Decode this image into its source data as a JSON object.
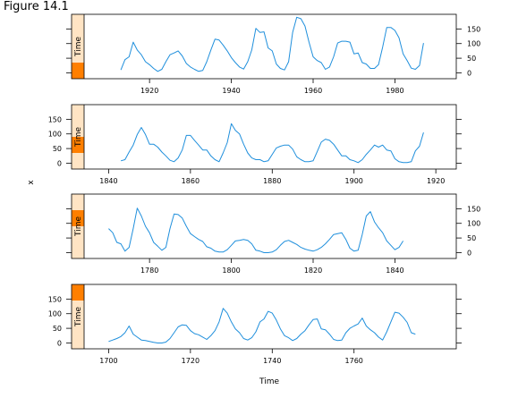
{
  "figure_label": "Figure 14.1",
  "chart_data": {
    "type": "line",
    "title": "",
    "xlabel": "Time",
    "ylabel": "x",
    "strip_label": "Time",
    "line_color": "#1f8fdc",
    "strip_color": "#ffe4c4",
    "strip_marker_color": "#ff7f00",
    "grid": false,
    "panels": [
      {
        "name": "panel-4",
        "xlim": [
          1904,
          1995
        ],
        "ylim": [
          -20,
          200
        ],
        "xticks": [
          1920,
          1940,
          1960,
          1980
        ],
        "yticks": [
          0,
          50,
          100,
          150
        ],
        "yaxis_side": "right",
        "xaxis_side": "bottom",
        "strip_fraction": [
          0.0,
          0.25
        ],
        "x_start": 1913,
        "values": [
          10,
          45,
          55,
          105,
          78,
          62,
          38,
          28,
          15,
          5,
          12,
          38,
          62,
          68,
          75,
          58,
          32,
          20,
          12,
          5,
          8,
          38,
          78,
          115,
          112,
          95,
          75,
          52,
          35,
          20,
          13,
          38,
          78,
          152,
          138,
          140,
          85,
          75,
          30,
          15,
          10,
          38,
          138,
          190,
          185,
          160,
          105,
          55,
          42,
          35,
          12,
          20,
          55,
          102,
          108,
          108,
          105,
          65,
          68,
          35,
          30,
          15,
          15,
          28,
          88,
          155,
          155,
          145,
          120,
          65,
          42,
          16,
          12,
          25,
          102
        ]
      },
      {
        "name": "panel-3",
        "xlim": [
          1834,
          1925
        ],
        "ylim": [
          -20,
          200
        ],
        "xticks": [
          1840,
          1860,
          1880,
          1900,
          1920
        ],
        "yticks": [
          0,
          50,
          100,
          150
        ],
        "yaxis_side": "left",
        "xaxis_side": "bottom",
        "strip_fraction": [
          0.25,
          0.5
        ],
        "x_start": 1843,
        "values": [
          8,
          12,
          38,
          62,
          98,
          122,
          98,
          65,
          65,
          55,
          38,
          25,
          10,
          5,
          18,
          45,
          95,
          95,
          78,
          62,
          45,
          45,
          25,
          12,
          5,
          35,
          70,
          135,
          112,
          100,
          65,
          35,
          18,
          12,
          12,
          5,
          8,
          30,
          52,
          58,
          62,
          62,
          48,
          22,
          12,
          5,
          5,
          8,
          40,
          72,
          82,
          78,
          65,
          45,
          25,
          25,
          12,
          8,
          2,
          12,
          30,
          45,
          62,
          55,
          62,
          45,
          42,
          15,
          5,
          2,
          2,
          5,
          42,
          58,
          105
        ]
      },
      {
        "name": "panel-2",
        "xlim": [
          1764,
          1855
        ],
        "ylim": [
          -20,
          200
        ],
        "xticks": [
          1780,
          1800,
          1820,
          1840
        ],
        "yticks": [
          0,
          50,
          100,
          150
        ],
        "yaxis_side": "right",
        "xaxis_side": "bottom",
        "strip_fraction": [
          0.5,
          0.75
        ],
        "x_start": 1770,
        "values": [
          82,
          68,
          35,
          30,
          5,
          18,
          82,
          152,
          125,
          90,
          68,
          35,
          22,
          8,
          18,
          82,
          132,
          130,
          118,
          90,
          65,
          55,
          45,
          38,
          20,
          15,
          5,
          2,
          2,
          10,
          25,
          40,
          42,
          45,
          42,
          30,
          8,
          5,
          0,
          0,
          2,
          10,
          25,
          38,
          42,
          35,
          28,
          18,
          12,
          8,
          5,
          10,
          18,
          30,
          45,
          62,
          65,
          68,
          45,
          15,
          5,
          8,
          62,
          125,
          140,
          105,
          85,
          68,
          40,
          25,
          10,
          18,
          40
        ]
      },
      {
        "name": "panel-1",
        "xlim": [
          1694,
          1785
        ],
        "ylim": [
          -20,
          200
        ],
        "xticks": [
          1700,
          1720,
          1740,
          1760
        ],
        "yticks": [
          0,
          50,
          100,
          150
        ],
        "yaxis_side": "left",
        "xaxis_side": "bottom",
        "strip_fraction": [
          0.75,
          1.0
        ],
        "x_start": 1700,
        "values": [
          5,
          10,
          15,
          22,
          35,
          58,
          30,
          20,
          10,
          8,
          5,
          2,
          0,
          0,
          3,
          15,
          35,
          55,
          62,
          60,
          42,
          32,
          28,
          20,
          12,
          25,
          42,
          72,
          118,
          102,
          72,
          48,
          35,
          15,
          10,
          18,
          38,
          72,
          82,
          108,
          102,
          78,
          48,
          25,
          18,
          8,
          15,
          30,
          42,
          62,
          80,
          82,
          48,
          45,
          30,
          12,
          8,
          10,
          35,
          50,
          58,
          65,
          85,
          58,
          45,
          35,
          20,
          10,
          38,
          72,
          105,
          102,
          88,
          70,
          35,
          30
        ]
      }
    ]
  }
}
